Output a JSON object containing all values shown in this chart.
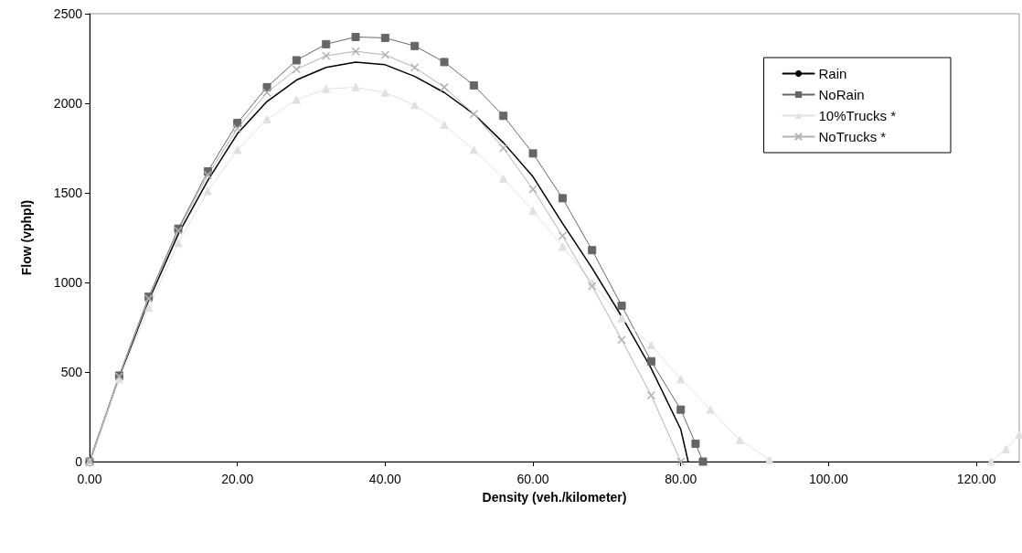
{
  "chart_data": {
    "type": "line",
    "xlabel": "Density (veh./kilometer)",
    "ylabel": "Flow (vphpl)",
    "xlim": [
      0,
      125.8
    ],
    "xticks": [
      {
        "value": 0,
        "label": "0.00"
      },
      {
        "value": 20,
        "label": "20.00"
      },
      {
        "value": 40,
        "label": "40.00"
      },
      {
        "value": 60,
        "label": "60.00"
      },
      {
        "value": 80,
        "label": "80.00"
      },
      {
        "value": 100,
        "label": "100.00"
      },
      {
        "value": 120,
        "label": "120.00"
      }
    ],
    "ylim": [
      0,
      2500
    ],
    "yticks": [
      0,
      500,
      1000,
      1500,
      2000,
      2500
    ],
    "grid": false,
    "legend": "top right",
    "line_style": "solid",
    "series": [
      {
        "name": "Rain",
        "color": "#000000",
        "marker": "none",
        "x": [
          0,
          4,
          8,
          12,
          16,
          20,
          24,
          28,
          32,
          36,
          40,
          44,
          48,
          52,
          56,
          60,
          64,
          68,
          72,
          76,
          80,
          81
        ],
        "values": [
          0,
          470,
          900,
          1270,
          1570,
          1830,
          2010,
          2130,
          2200,
          2230,
          2215,
          2150,
          2060,
          1940,
          1780,
          1590,
          1330,
          1080,
          810,
          520,
          180,
          0
        ]
      },
      {
        "name": "NoRain",
        "color": "#666666",
        "marker": "square",
        "x": [
          0,
          4,
          8,
          12,
          16,
          20,
          24,
          28,
          32,
          36,
          40,
          44,
          48,
          52,
          56,
          60,
          64,
          68,
          72,
          76,
          80,
          82,
          83
        ],
        "values": [
          0,
          480,
          920,
          1300,
          1620,
          1890,
          2090,
          2240,
          2330,
          2370,
          2365,
          2320,
          2230,
          2100,
          1930,
          1720,
          1470,
          1180,
          870,
          560,
          290,
          100,
          0
        ]
      },
      {
        "name": "10%Trucks *",
        "color": "#e0e0e0",
        "marker": "triangle",
        "x": [
          0,
          4,
          8,
          12,
          16,
          20,
          24,
          28,
          32,
          36,
          40,
          44,
          48,
          52,
          56,
          60,
          64,
          68,
          72,
          76,
          80,
          84,
          88,
          92,
          100,
          122,
          124,
          125.8
        ],
        "values": [
          0,
          460,
          860,
          1220,
          1510,
          1740,
          1910,
          2020,
          2080,
          2090,
          2060,
          1990,
          1880,
          1740,
          1580,
          1400,
          1200,
          1000,
          800,
          650,
          460,
          290,
          120,
          10,
          null,
          0,
          70,
          150
        ]
      },
      {
        "name": "NoTrucks *",
        "color": "#b2b2b2",
        "marker": "cross",
        "x": [
          0,
          4,
          8,
          12,
          16,
          20,
          24,
          28,
          32,
          36,
          40,
          44,
          48,
          52,
          56,
          60,
          64,
          68,
          72,
          76,
          80
        ],
        "values": [
          0,
          475,
          910,
          1290,
          1600,
          1860,
          2060,
          2190,
          2265,
          2290,
          2270,
          2200,
          2090,
          1940,
          1750,
          1520,
          1260,
          980,
          680,
          370,
          0
        ]
      }
    ]
  }
}
